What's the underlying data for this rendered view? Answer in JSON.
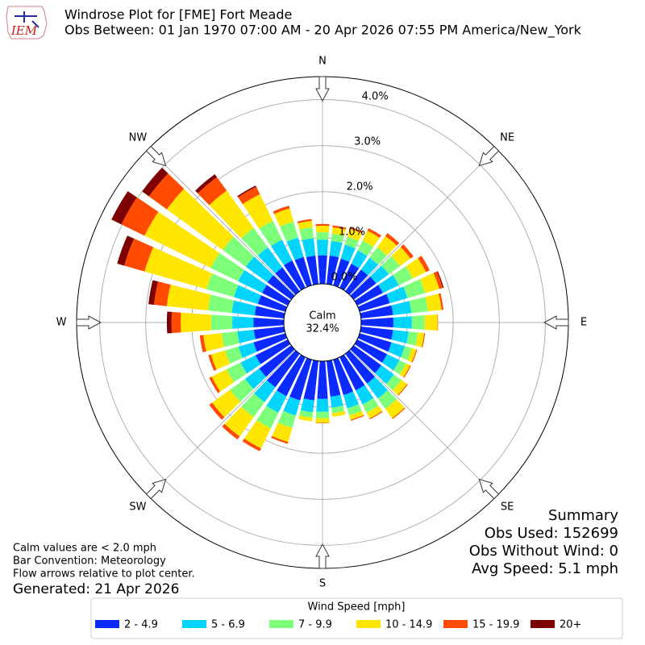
{
  "chart_data": {
    "type": "windrose",
    "title": "Windrose Plot for [FME] Fort Meade",
    "subtitle": "Obs Between: 01 Jan 1970 07:00 AM - 20 Apr 2026 07:55 PM America/New_York",
    "x": [
      0,
      10,
      20,
      30,
      40,
      50,
      60,
      70,
      80,
      90,
      100,
      110,
      120,
      130,
      140,
      150,
      160,
      170,
      180,
      190,
      200,
      210,
      220,
      230,
      240,
      250,
      260,
      270,
      280,
      290,
      300,
      310,
      320,
      330,
      340,
      350
    ],
    "series": [
      {
        "name": "2 - 4.9",
        "color": "#0a2aff",
        "values": [
          0.62,
          0.62,
          0.6,
          0.58,
          0.58,
          0.6,
          0.62,
          0.68,
          0.7,
          0.7,
          0.7,
          0.72,
          0.72,
          0.74,
          0.8,
          0.8,
          0.8,
          0.78,
          0.82,
          0.86,
          0.92,
          0.94,
          0.9,
          0.86,
          0.78,
          0.72,
          0.66,
          0.66,
          0.64,
          0.62,
          0.62,
          0.64,
          0.64,
          0.66,
          0.64,
          0.62
        ]
      },
      {
        "name": "5 - 6.9",
        "color": "#00d4ff",
        "values": [
          0.34,
          0.32,
          0.32,
          0.32,
          0.32,
          0.34,
          0.38,
          0.4,
          0.4,
          0.4,
          0.34,
          0.3,
          0.3,
          0.34,
          0.4,
          0.34,
          0.3,
          0.24,
          0.28,
          0.26,
          0.34,
          0.4,
          0.4,
          0.38,
          0.36,
          0.34,
          0.36,
          0.46,
          0.5,
          0.54,
          0.58,
          0.58,
          0.54,
          0.5,
          0.44,
          0.38
        ]
      },
      {
        "name": "7 - 9.9",
        "color": "#7dff7a",
        "values": [
          0.16,
          0.16,
          0.18,
          0.24,
          0.28,
          0.3,
          0.34,
          0.4,
          0.36,
          0.28,
          0.2,
          0.16,
          0.16,
          0.2,
          0.28,
          0.2,
          0.16,
          0.12,
          0.14,
          0.12,
          0.28,
          0.38,
          0.4,
          0.4,
          0.34,
          0.3,
          0.34,
          0.46,
          0.52,
          0.62,
          0.66,
          0.62,
          0.52,
          0.46,
          0.36,
          0.24
        ]
      },
      {
        "name": "10 - 14.9",
        "color": "#ffe600",
        "values": [
          0.14,
          0.14,
          0.18,
          0.24,
          0.3,
          0.28,
          0.32,
          0.32,
          0.3,
          0.28,
          0.14,
          0.1,
          0.1,
          0.15,
          0.25,
          0.14,
          0.1,
          0.08,
          0.1,
          0.08,
          0.32,
          0.48,
          0.52,
          0.48,
          0.36,
          0.32,
          0.4,
          0.66,
          0.9,
          1.4,
          1.6,
          1.5,
          1.0,
          0.64,
          0.3,
          0.14
        ]
      },
      {
        "name": "15 - 19.9",
        "color": "#ff4a00",
        "values": [
          0.04,
          0.04,
          0.04,
          0.06,
          0.08,
          0.08,
          0.09,
          0.08,
          0.04,
          0.01,
          0.02,
          0.02,
          0.02,
          0.02,
          0.02,
          0.02,
          0.02,
          0,
          0.01,
          0,
          0.04,
          0.07,
          0.08,
          0.08,
          0.06,
          0.06,
          0.08,
          0.2,
          0.28,
          0.46,
          0.56,
          0.48,
          0.36,
          0.18,
          0.06,
          0.04
        ]
      },
      {
        "name": "20+",
        "color": "#7f0000",
        "values": [
          0,
          0,
          0,
          0,
          0,
          0,
          0,
          0.02,
          0,
          0,
          0,
          0,
          0,
          0,
          0,
          0,
          0,
          0,
          0,
          0,
          0,
          0,
          0,
          0,
          0,
          0,
          0,
          0.1,
          0.12,
          0.16,
          0.24,
          0.18,
          0.08,
          0.03,
          0,
          0
        ]
      }
    ],
    "rlim": [
      0,
      4.5
    ],
    "rticks": [
      {
        "value": 0,
        "label": "0.0%"
      },
      {
        "value": 1,
        "label": "1.0%"
      },
      {
        "value": 2,
        "label": "2.0%"
      },
      {
        "value": 3,
        "label": "3.0%"
      },
      {
        "value": 4,
        "label": "4.0%"
      }
    ],
    "direction_labels": [
      "N",
      "NE",
      "E",
      "SE",
      "S",
      "SW",
      "W",
      "NW"
    ],
    "calm": {
      "label": "Calm",
      "value": 32.4,
      "value_label": "32.4%"
    },
    "legend_title": "Wind Speed [mph]",
    "summary": [
      "Summary",
      "Obs Used: 152699",
      "Obs Without Wind: 0",
      "Avg Speed: 5.1 mph"
    ],
    "notes": [
      "Calm values are < 2.0 mph",
      "Bar Convention: Meteorology",
      "Flow arrows relative to plot center."
    ],
    "generated": "Generated: 21 Apr 2026",
    "logo": "IEM"
  }
}
